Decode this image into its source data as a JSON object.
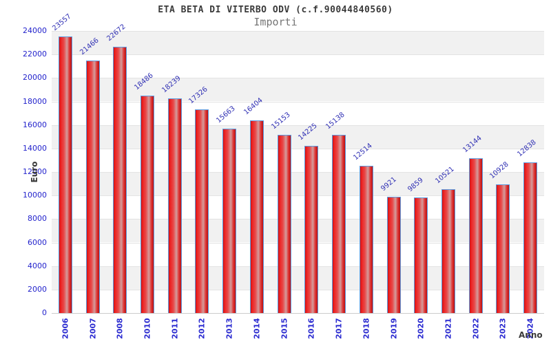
{
  "chart_data": {
    "type": "bar",
    "title": "ETA BETA DI VITERBO ODV (c.f.90044840560)",
    "subtitle": "Importi",
    "xlabel": "Anno",
    "ylabel": "Euro",
    "categories": [
      "2006",
      "2007",
      "2008",
      "2010",
      "2011",
      "2012",
      "2013",
      "2014",
      "2015",
      "2016",
      "2017",
      "2018",
      "2019",
      "2020",
      "2021",
      "2022",
      "2023",
      "2024"
    ],
    "values": [
      23557,
      21466,
      22672,
      18486,
      18239,
      17326,
      15663,
      16404,
      15153,
      14225,
      15138,
      12514,
      9921,
      9859,
      10521,
      13144,
      10928,
      12838
    ],
    "ylim": [
      0,
      24000
    ],
    "ytick_step": 2000,
    "y_ticks": [
      0,
      2000,
      4000,
      6000,
      8000,
      10000,
      12000,
      14000,
      16000,
      18000,
      20000,
      22000,
      24000
    ],
    "grid": "alternating-horizontal-bands",
    "legend": "none",
    "colors": {
      "bar_fill": "#e02020",
      "bar_border": "#5b9be0",
      "value_label": "#2f2fb4",
      "tick_label": "#2222cc",
      "band_gray": "#f1f1f1",
      "band_white": "#ffffff",
      "title_text": "#3a3a3a",
      "subtitle_text": "#757575"
    }
  }
}
